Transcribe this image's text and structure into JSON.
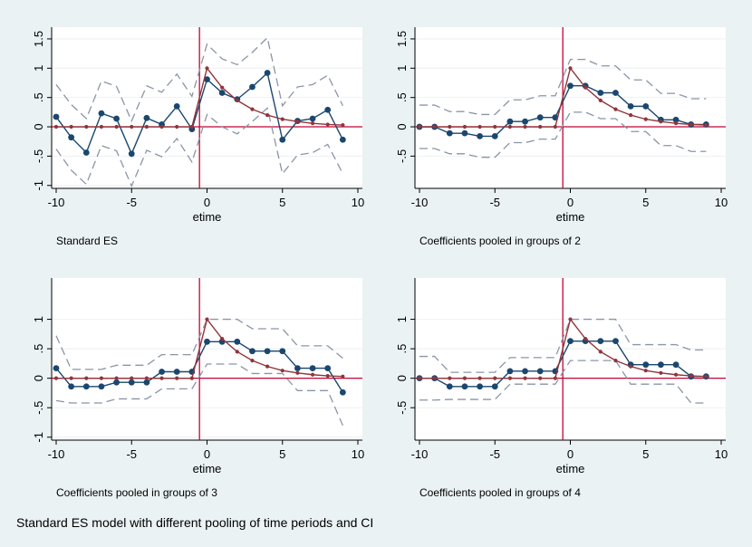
{
  "caption": "Standard ES model with different pooling of time periods and CI",
  "colors": {
    "background": "#eaf2f3",
    "plot_area": "#ffffff",
    "estimate": "#1a476f",
    "truth": "#90353b",
    "ci": "#8b95a6",
    "zero_line": "#c10534",
    "axis": "#000000"
  },
  "chart_data": [
    {
      "type": "line",
      "subtitle": "Standard ES",
      "xlabel": "etime",
      "ylabel": "",
      "x": [
        -10,
        -9,
        -8,
        -7,
        -6,
        -5,
        -4,
        -3,
        -2,
        -1,
        0,
        1,
        2,
        3,
        4,
        5,
        6,
        7,
        8,
        9
      ],
      "xlim": [
        -10.3,
        10.3
      ],
      "ylim": [
        -1.05,
        1.7
      ],
      "xticks": [
        -10,
        -5,
        0,
        5,
        10
      ],
      "xtick_labels": [
        "-10",
        "-5",
        "0",
        "5",
        "10"
      ],
      "yticks": [
        -1,
        -0.5,
        0,
        0.5,
        1,
        1.5
      ],
      "ytick_labels": [
        "-1",
        "-.5",
        "0",
        ".5",
        "1",
        "1.5"
      ],
      "vline_x": -0.5,
      "hline_y": 0,
      "grid": "horizontal",
      "legend": "none",
      "series": [
        {
          "role": "estimate",
          "values": [
            0.17,
            -0.18,
            -0.44,
            0.23,
            0.14,
            -0.46,
            0.15,
            0.04,
            0.35,
            -0.04,
            0.81,
            0.58,
            0.47,
            0.68,
            0.92,
            -0.22,
            0.1,
            0.14,
            0.29,
            -0.22
          ]
        },
        {
          "role": "ci_upper",
          "values": [
            0.72,
            0.38,
            0.14,
            0.78,
            0.69,
            0.1,
            0.7,
            0.59,
            0.9,
            0.52,
            1.41,
            1.16,
            1.06,
            1.27,
            1.52,
            0.36,
            0.68,
            0.72,
            0.88,
            0.36
          ]
        },
        {
          "role": "ci_lower",
          "values": [
            -0.38,
            -0.74,
            -0.98,
            -0.32,
            -0.41,
            -1.01,
            -0.4,
            -0.51,
            -0.2,
            -0.6,
            0.21,
            0.0,
            -0.12,
            0.09,
            0.32,
            -0.8,
            -0.48,
            -0.44,
            -0.3,
            -0.8
          ]
        },
        {
          "role": "truth",
          "values": [
            0,
            0,
            0,
            0,
            0,
            0,
            0,
            0,
            0,
            0,
            1.0,
            0.67,
            0.45,
            0.3,
            0.2,
            0.13,
            0.09,
            0.06,
            0.04,
            0.03
          ]
        }
      ]
    },
    {
      "type": "line",
      "subtitle": "Coefficients pooled in groups of 2",
      "xlabel": "etime",
      "ylabel": "",
      "x": [
        -10,
        -9,
        -8,
        -7,
        -6,
        -5,
        -4,
        -3,
        -2,
        -1,
        0,
        1,
        2,
        3,
        4,
        5,
        6,
        7,
        8,
        9
      ],
      "xlim": [
        -10.3,
        10.3
      ],
      "ylim": [
        -1.05,
        1.7
      ],
      "xticks": [
        -10,
        -5,
        0,
        5,
        10
      ],
      "xtick_labels": [
        "-10",
        "-5",
        "0",
        "5",
        "10"
      ],
      "yticks": [
        -0.5,
        0,
        0.5,
        1,
        1.5
      ],
      "ytick_labels": [
        "-.5",
        "0",
        ".5",
        "1",
        "1.5"
      ],
      "vline_x": -0.5,
      "hline_y": 0,
      "grid": "horizontal",
      "legend": "none",
      "series": [
        {
          "role": "estimate",
          "values": [
            0.0,
            0.0,
            -0.11,
            -0.11,
            -0.16,
            -0.16,
            0.09,
            0.09,
            0.16,
            0.16,
            0.7,
            0.7,
            0.58,
            0.58,
            0.35,
            0.35,
            0.12,
            0.12,
            0.04,
            0.04
          ]
        },
        {
          "role": "ci_upper",
          "values": [
            0.37,
            0.37,
            0.26,
            0.26,
            0.21,
            0.21,
            0.46,
            0.46,
            0.53,
            0.53,
            1.15,
            1.15,
            1.04,
            1.04,
            0.8,
            0.8,
            0.57,
            0.57,
            0.48,
            0.48
          ]
        },
        {
          "role": "ci_lower",
          "values": [
            -0.37,
            -0.37,
            -0.46,
            -0.46,
            -0.52,
            -0.52,
            -0.27,
            -0.27,
            -0.21,
            -0.21,
            0.25,
            0.25,
            0.14,
            0.14,
            -0.08,
            -0.08,
            -0.32,
            -0.32,
            -0.42,
            -0.42
          ]
        },
        {
          "role": "truth",
          "values": [
            0,
            0,
            0,
            0,
            0,
            0,
            0,
            0,
            0,
            0,
            1.0,
            0.67,
            0.45,
            0.3,
            0.2,
            0.13,
            0.09,
            0.06,
            0.04,
            0.03
          ]
        }
      ]
    },
    {
      "type": "line",
      "subtitle": "Coefficients pooled in groups of 3",
      "xlabel": "etime",
      "ylabel": "",
      "x": [
        -10,
        -9,
        -8,
        -7,
        -6,
        -5,
        -4,
        -3,
        -2,
        -1,
        0,
        1,
        2,
        3,
        4,
        5,
        6,
        7,
        8,
        9
      ],
      "xlim": [
        -10.3,
        10.3
      ],
      "ylim": [
        -1.05,
        1.7
      ],
      "xticks": [
        -10,
        -5,
        0,
        5,
        10
      ],
      "xtick_labels": [
        "-10",
        "-5",
        "0",
        "5",
        "10"
      ],
      "yticks": [
        -1,
        -0.5,
        0,
        0.5,
        1
      ],
      "ytick_labels": [
        "-1",
        "-.5",
        "0",
        ".5",
        "1"
      ],
      "vline_x": -0.5,
      "hline_y": 0,
      "grid": "horizontal",
      "legend": "none",
      "series": [
        {
          "role": "estimate",
          "values": [
            0.17,
            -0.14,
            -0.14,
            -0.14,
            -0.07,
            -0.07,
            -0.07,
            0.11,
            0.11,
            0.11,
            0.62,
            0.62,
            0.62,
            0.46,
            0.46,
            0.46,
            0.17,
            0.17,
            0.17,
            -0.24
          ]
        },
        {
          "role": "ci_upper",
          "values": [
            0.72,
            0.15,
            0.15,
            0.15,
            0.22,
            0.22,
            0.22,
            0.4,
            0.4,
            0.4,
            1.0,
            1.0,
            1.0,
            0.84,
            0.84,
            0.84,
            0.55,
            0.55,
            0.55,
            0.34
          ]
        },
        {
          "role": "ci_lower",
          "values": [
            -0.38,
            -0.42,
            -0.42,
            -0.42,
            -0.35,
            -0.35,
            -0.35,
            -0.18,
            -0.18,
            -0.18,
            0.24,
            0.24,
            0.24,
            0.08,
            0.08,
            0.08,
            -0.21,
            -0.21,
            -0.21,
            -0.8
          ]
        },
        {
          "role": "truth",
          "values": [
            0,
            0,
            0,
            0,
            0,
            0,
            0,
            0,
            0,
            0,
            1.0,
            0.67,
            0.45,
            0.3,
            0.2,
            0.13,
            0.09,
            0.06,
            0.04,
            0.03
          ]
        }
      ]
    },
    {
      "type": "line",
      "subtitle": "Coefficients pooled in groups of 4",
      "xlabel": "etime",
      "ylabel": "",
      "x": [
        -10,
        -9,
        -8,
        -7,
        -6,
        -5,
        -4,
        -3,
        -2,
        -1,
        0,
        1,
        2,
        3,
        4,
        5,
        6,
        7,
        8,
        9
      ],
      "xlim": [
        -10.3,
        10.3
      ],
      "ylim": [
        -1.05,
        1.7
      ],
      "xticks": [
        -10,
        -5,
        0,
        5,
        10
      ],
      "xtick_labels": [
        "-10",
        "-5",
        "0",
        "5",
        "10"
      ],
      "yticks": [
        -0.5,
        0,
        0.5,
        1
      ],
      "ytick_labels": [
        "-.5",
        "0",
        ".5",
        "1"
      ],
      "vline_x": -0.5,
      "hline_y": 0,
      "grid": "horizontal",
      "legend": "none",
      "series": [
        {
          "role": "estimate",
          "values": [
            0.0,
            0.0,
            -0.14,
            -0.14,
            -0.14,
            -0.14,
            0.12,
            0.12,
            0.12,
            0.12,
            0.63,
            0.63,
            0.63,
            0.63,
            0.23,
            0.23,
            0.23,
            0.23,
            0.03,
            0.03
          ]
        },
        {
          "role": "ci_upper",
          "values": [
            0.37,
            0.37,
            0.1,
            0.1,
            0.1,
            0.1,
            0.35,
            0.35,
            0.35,
            0.35,
            1.0,
            1.0,
            1.0,
            1.0,
            0.57,
            0.57,
            0.57,
            0.57,
            0.48,
            0.48
          ]
        },
        {
          "role": "ci_lower",
          "values": [
            -0.37,
            -0.37,
            -0.36,
            -0.36,
            -0.36,
            -0.36,
            -0.1,
            -0.1,
            -0.1,
            -0.1,
            0.3,
            0.3,
            0.3,
            0.3,
            -0.1,
            -0.1,
            -0.1,
            -0.1,
            -0.42,
            -0.42
          ]
        },
        {
          "role": "truth",
          "values": [
            0,
            0,
            0,
            0,
            0,
            0,
            0,
            0,
            0,
            0,
            1.0,
            0.67,
            0.45,
            0.3,
            0.2,
            0.13,
            0.09,
            0.06,
            0.04,
            0.03
          ]
        }
      ]
    }
  ]
}
